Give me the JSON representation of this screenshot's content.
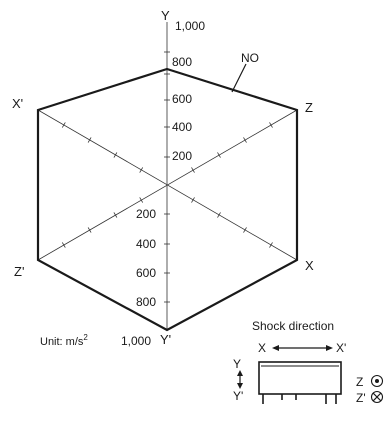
{
  "axes": {
    "y": "Y",
    "y_prime": "Y'",
    "x": "X",
    "x_prime": "X'",
    "z": "Z",
    "z_prime": "Z'"
  },
  "scale": {
    "max": "1,000",
    "upper_ticks": [
      "800",
      "600",
      "400",
      "200"
    ],
    "lower_ticks": [
      "200",
      "400",
      "600",
      "800"
    ],
    "bottom": "1,000"
  },
  "curve_label": "NO",
  "unit_prefix": "Unit: m/s",
  "unit_exponent": "2",
  "inset": {
    "title": "Shock direction",
    "x": "X",
    "x_prime": "X'",
    "y": "Y",
    "y_prime": "Y'",
    "z": "Z",
    "z_prime": "Z'"
  }
}
